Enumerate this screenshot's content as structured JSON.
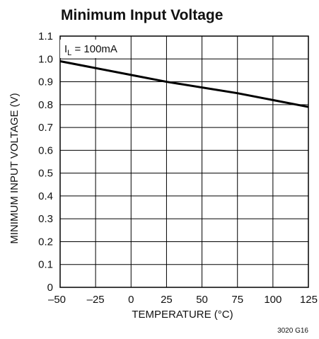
{
  "chart_data": {
    "type": "line",
    "title": "Minimum Input Voltage",
    "xlabel": "TEMPERATURE (°C)",
    "ylabel": "MINIMUM INPUT VOLTAGE (V)",
    "xlim": [
      -50,
      125
    ],
    "ylim": [
      0,
      1.1
    ],
    "x_ticks": [
      -50,
      -25,
      0,
      25,
      50,
      75,
      100,
      125
    ],
    "x_tick_labels": [
      "–50",
      "–25",
      "0",
      "25",
      "50",
      "75",
      "100",
      "125"
    ],
    "y_ticks": [
      0,
      0.1,
      0.2,
      0.3,
      0.4,
      0.5,
      0.6,
      0.7,
      0.8,
      0.9,
      1.0,
      1.1
    ],
    "y_tick_labels": [
      "0",
      "0.1",
      "0.2",
      "0.3",
      "0.4",
      "0.5",
      "0.6",
      "0.7",
      "0.8",
      "0.9",
      "1.0",
      "1.1"
    ],
    "grid": true,
    "series": [
      {
        "x": [
          -50,
          0,
          25,
          75,
          125
        ],
        "y": [
          0.99,
          0.93,
          0.9,
          0.85,
          0.79
        ]
      }
    ],
    "annotation": {
      "main": "I",
      "sub": "L",
      "rest": " = 100mA"
    },
    "figure_code": "3020 G16",
    "line_color": "#000000"
  }
}
